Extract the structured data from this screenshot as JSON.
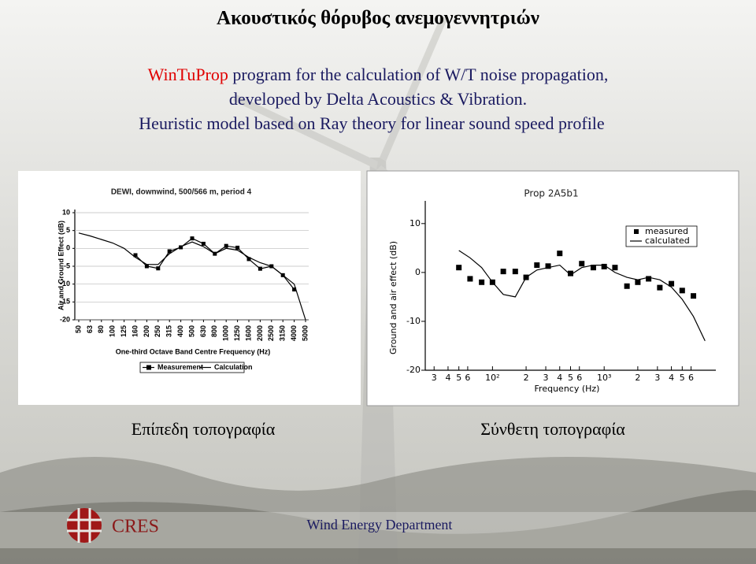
{
  "slide": {
    "title": "Ακουστικός θόρυβος ανεμογεννητριών",
    "intro_program": "WinTuProp",
    "intro_rest": " program for the calculation of W/T noise propagation,",
    "line2": "developed by Delta Acoustics & Vibration.",
    "line3": "Heuristic model based on Ray theory for linear sound speed profile",
    "captions": [
      "Επίπεδη τοπογραφία",
      "Σύνθετη τοπογραφία"
    ],
    "footer_logo": "CRES",
    "footer_department": "Wind Energy Department"
  },
  "chart_data": [
    {
      "type": "line",
      "title": "DEWI, downwind, 500/566 m, period 4",
      "x_label": "One-third Octave Band Centre Frequency (Hz)",
      "y_label": "Air and Ground Effect (dB)",
      "categories": [
        "50",
        "63",
        "80",
        "100",
        "125",
        "160",
        "200",
        "250",
        "315",
        "400",
        "500",
        "630",
        "800",
        "1000",
        "1250",
        "1600",
        "2000",
        "2500",
        "3150",
        "4000",
        "5000"
      ],
      "ylim": [
        -20,
        10
      ],
      "yticks": [
        -20,
        -15,
        -10,
        -5,
        0,
        5,
        10
      ],
      "grid": true,
      "legend": "bottom",
      "series": [
        {
          "name": "Measurement",
          "color": "#000000",
          "style": "line-markers",
          "values": [
            null,
            null,
            null,
            null,
            null,
            -1.9,
            -5,
            -5.6,
            -0.8,
            0.3,
            2.8,
            1.3,
            -1.5,
            0.7,
            0.2,
            -3,
            -5.7,
            -5,
            -7.5,
            -11.5,
            null
          ]
        },
        {
          "name": "Calculation",
          "color": "#000000",
          "style": "line",
          "values": [
            4.3,
            3.5,
            2.5,
            1.5,
            0,
            -2.5,
            -4.5,
            -4.5,
            -1.5,
            0.5,
            1.8,
            0.5,
            -1.5,
            0,
            -0.5,
            -2.5,
            -4,
            -5,
            -7.5,
            -10,
            -20
          ]
        }
      ]
    },
    {
      "type": "line",
      "title": "Prop 2A5b1",
      "x_label": "Frequency (Hz)",
      "y_label": "Ground and air effect (dB)",
      "log_x": true,
      "xlim": [
        25,
        10000
      ],
      "xticks": [
        {
          "value": 30,
          "label": "3"
        },
        {
          "value": 40,
          "label": "4"
        },
        {
          "value": 50,
          "label": "5"
        },
        {
          "value": 60,
          "label": "6"
        },
        {
          "value": 100,
          "label": "10²"
        },
        {
          "value": 200,
          "label": "2"
        },
        {
          "value": 300,
          "label": "3"
        },
        {
          "value": 400,
          "label": "4"
        },
        {
          "value": 500,
          "label": "5"
        },
        {
          "value": 600,
          "label": "6"
        },
        {
          "value": 1000,
          "label": "10³"
        },
        {
          "value": 2000,
          "label": "2"
        },
        {
          "value": 3000,
          "label": "3"
        },
        {
          "value": 4000,
          "label": "4"
        },
        {
          "value": 5000,
          "label": "5"
        },
        {
          "value": 6000,
          "label": "6"
        }
      ],
      "ylim": [
        -20,
        14
      ],
      "yticks": [
        -20,
        -10,
        0,
        10
      ],
      "grid": false,
      "legend": "upper right",
      "x": [
        50,
        63,
        80,
        100,
        125,
        160,
        200,
        250,
        315,
        400,
        500,
        630,
        800,
        1000,
        1250,
        1600,
        2000,
        2500,
        3150,
        4000,
        5000,
        6300,
        8000
      ],
      "series": [
        {
          "name": "measured",
          "color": "#000000",
          "style": "markers",
          "values": [
            1,
            -1.3,
            -2,
            -2,
            0.2,
            0.2,
            -1,
            1.5,
            1.3,
            3.9,
            -0.2,
            1.8,
            1,
            1.2,
            1,
            -2.8,
            -2,
            -1.3,
            -3.1,
            -2.3,
            -3.7,
            -4.8,
            null
          ]
        },
        {
          "name": "calculated",
          "color": "#000000",
          "style": "line",
          "values": [
            4.5,
            3,
            1,
            -2,
            -4.5,
            -5,
            -1,
            0.5,
            1,
            1.5,
            -0.5,
            1,
            1.5,
            1.5,
            0,
            -1,
            -1.5,
            -1,
            -1.5,
            -3,
            -5.5,
            -9,
            -14
          ]
        }
      ]
    }
  ]
}
